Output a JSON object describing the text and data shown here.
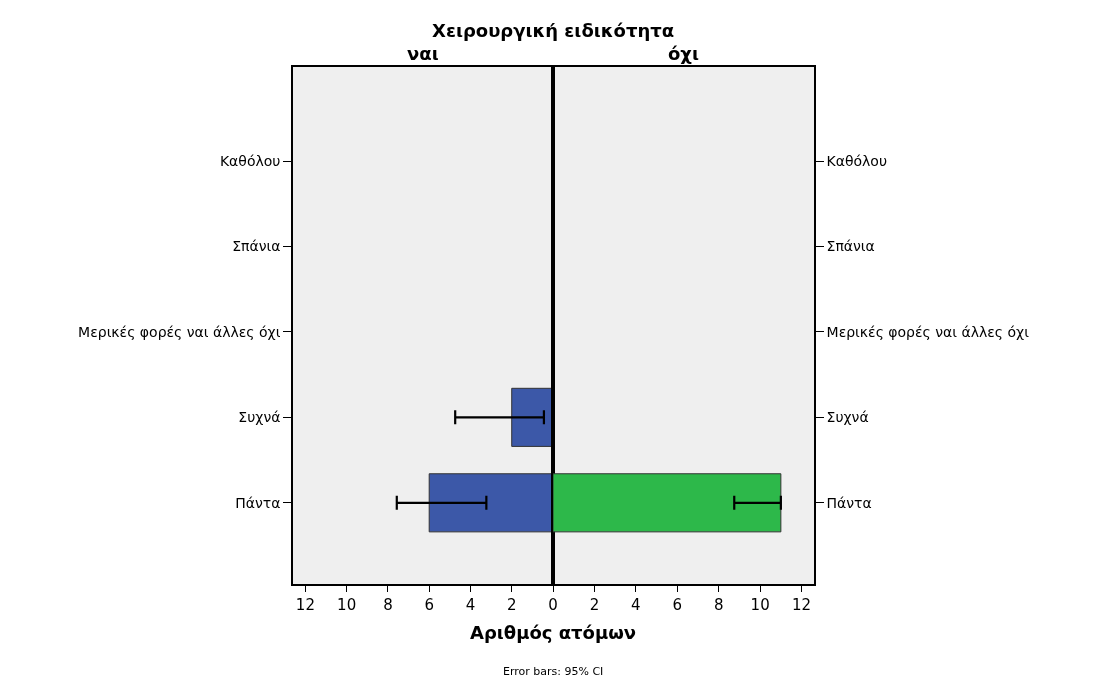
{
  "chart_data": [
    {
      "type": "bar",
      "orientation": "horizontal",
      "title": "Χειρουργική ειδικότητα",
      "subtitle": "ναι",
      "xlabel": "Αριθμός ατόμων",
      "categories": [
        "Καθόλου",
        "Σπάνια",
        "Μερικές φορές ναι άλλες όχι",
        "Συχνά",
        "Πάντα"
      ],
      "values": [
        null,
        null,
        null,
        2,
        6
      ],
      "color": "#3c58a8",
      "errors": [
        null,
        null,
        null,
        [
          0.44,
          4.74
        ],
        [
          3.23,
          7.57
        ]
      ],
      "xlim": [
        12.6,
        0
      ],
      "xticks": [
        0,
        2,
        4,
        6,
        8,
        10,
        12
      ],
      "grid": false,
      "annotations": [
        "Error bars: 95% CI"
      ]
    },
    {
      "type": "bar",
      "orientation": "horizontal",
      "subtitle": "όχι",
      "categories": [
        "Καθόλου",
        "Σπάνια",
        "Μερικές φορές ναι άλλες όχι",
        "Συχνά",
        "Πάντα"
      ],
      "values": [
        null,
        null,
        null,
        null,
        11
      ],
      "color": "#2db84a",
      "errors": [
        null,
        null,
        null,
        null,
        [
          8.75,
          11
        ]
      ],
      "xlim": [
        0,
        12.6
      ],
      "xticks": [
        {
          "value": 0,
          "label": null
        },
        2,
        4,
        6,
        8,
        10,
        12
      ],
      "grid": false
    }
  ]
}
